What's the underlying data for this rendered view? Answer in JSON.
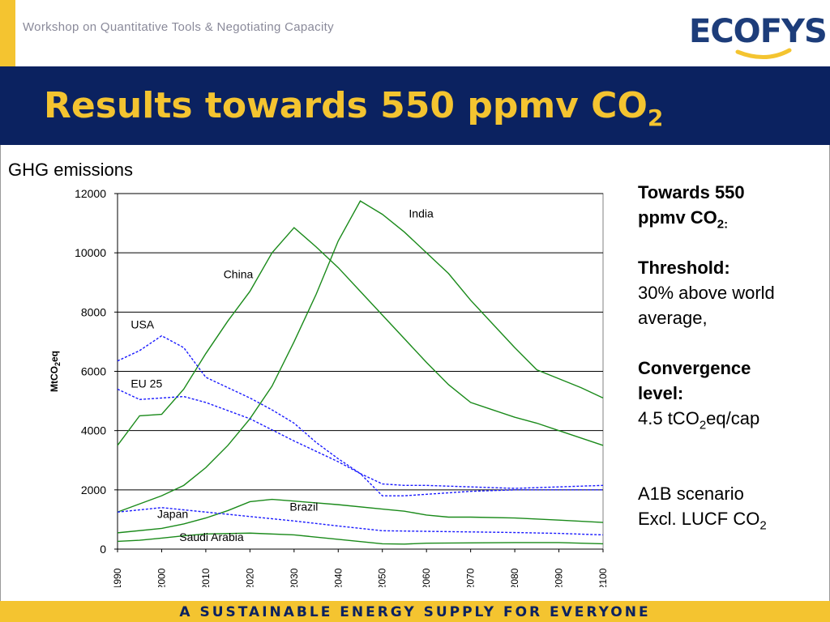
{
  "header": {
    "workshop": "Workshop on Quantitative Tools & Negotiating Capacity",
    "logo_eco": "ECO",
    "logo_fys": "FYS",
    "title_main": "Results towards 550 ppmv CO",
    "title_sub": "2"
  },
  "chart_heading": "GHG emissions",
  "sidebar": {
    "towards_line1": "Towards 550",
    "towards_line2": "ppmv CO",
    "towards_sub": "2:",
    "threshold_label": "Threshold:",
    "threshold_value1": "30% above world",
    "threshold_value2": "average,",
    "convergence_label1": "Convergence",
    "convergence_label2": "level:",
    "convergence_value_a": "4.5 tCO",
    "convergence_value_sub": "2",
    "convergence_value_b": "eq/cap",
    "scenario": "A1B scenario",
    "excl_a": "Excl. LUCF CO",
    "excl_sub": "2"
  },
  "footer": {
    "tagline": "A SUSTAINABLE ENERGY SUPPLY FOR EVERYONE"
  },
  "colors": {
    "navy": "#0b2260",
    "gold": "#f4c430",
    "green_series": "#1a8a1a",
    "blue_series": "#1a1aff"
  },
  "chart_data": {
    "type": "line",
    "ylabel_main": "MtCO",
    "ylabel_sub": "2",
    "ylabel_tail": "eq",
    "xlim": [
      1990,
      2100
    ],
    "ylim": [
      0,
      12000
    ],
    "yticks": [
      0,
      2000,
      4000,
      6000,
      8000,
      10000,
      12000
    ],
    "xticks": [
      1990,
      2000,
      2010,
      2020,
      2030,
      2040,
      2050,
      2060,
      2070,
      2080,
      2090,
      2100
    ],
    "grid": true,
    "series": [
      {
        "name": "India",
        "style": "solid",
        "color": "#1a8a1a",
        "x": [
          1990,
          2000,
          2005,
          2010,
          2015,
          2020,
          2025,
          2030,
          2035,
          2040,
          2045,
          2050,
          2055,
          2060,
          2065,
          2070,
          2075,
          2080,
          2085,
          2090,
          2095,
          2100
        ],
        "y": [
          1250,
          1800,
          2150,
          2750,
          3500,
          4400,
          5500,
          7000,
          8600,
          10400,
          11750,
          11300,
          10700,
          10000,
          9300,
          8400,
          7600,
          6800,
          6050,
          5750,
          5450,
          5100
        ]
      },
      {
        "name": "China",
        "style": "solid",
        "color": "#1a8a1a",
        "x": [
          1990,
          1995,
          2000,
          2005,
          2010,
          2015,
          2020,
          2025,
          2030,
          2035,
          2040,
          2045,
          2050,
          2055,
          2060,
          2065,
          2070,
          2075,
          2080,
          2085,
          2090,
          2095,
          2100
        ],
        "y": [
          3500,
          4500,
          4550,
          5400,
          6600,
          7700,
          8700,
          10000,
          10850,
          10200,
          9500,
          8700,
          7900,
          7100,
          6300,
          5550,
          4950,
          4700,
          4450,
          4250,
          4000,
          3750,
          3500
        ]
      },
      {
        "name": "Brazil",
        "style": "solid",
        "color": "#1a8a1a",
        "x": [
          1990,
          2000,
          2005,
          2010,
          2015,
          2020,
          2025,
          2030,
          2040,
          2050,
          2055,
          2060,
          2065,
          2070,
          2080,
          2090,
          2100
        ],
        "y": [
          550,
          700,
          850,
          1050,
          1300,
          1600,
          1680,
          1620,
          1500,
          1350,
          1280,
          1150,
          1080,
          1080,
          1050,
          980,
          900
        ]
      },
      {
        "name": "Saudi Arabia",
        "style": "solid",
        "color": "#1a8a1a",
        "x": [
          1990,
          1995,
          2000,
          2005,
          2010,
          2020,
          2030,
          2040,
          2050,
          2055,
          2060,
          2070,
          2080,
          2090,
          2100
        ],
        "y": [
          260,
          300,
          370,
          450,
          510,
          540,
          480,
          330,
          180,
          170,
          200,
          210,
          220,
          220,
          180
        ]
      },
      {
        "name": "USA",
        "style": "dashed",
        "color": "#1a1aff",
        "x": [
          1990,
          1995,
          2000,
          2005,
          2010,
          2015,
          2020,
          2025,
          2030,
          2035,
          2040,
          2045,
          2050,
          2055,
          2060,
          2070,
          2080,
          2090,
          2100
        ],
        "y": [
          6350,
          6700,
          7200,
          6800,
          5800,
          5450,
          5100,
          4700,
          4250,
          3600,
          3050,
          2550,
          2200,
          2150,
          2150,
          2100,
          2050,
          2100,
          2150
        ]
      },
      {
        "name": "EU 25",
        "style": "dashed",
        "color": "#1a1aff",
        "x": [
          1990,
          1995,
          2000,
          2005,
          2010,
          2020,
          2030,
          2040,
          2045,
          2050,
          2055,
          2060,
          2070,
          2080,
          2090,
          2100
        ],
        "y": [
          5400,
          5050,
          5100,
          5150,
          4950,
          4400,
          3650,
          2950,
          2550,
          1800,
          1800,
          1850,
          1950,
          2000,
          2000,
          2000
        ]
      },
      {
        "name": "Japan",
        "style": "dashed",
        "color": "#1a1aff",
        "x": [
          1990,
          2000,
          2010,
          2020,
          2030,
          2040,
          2050,
          2060,
          2070,
          2080,
          2090,
          2100
        ],
        "y": [
          1250,
          1400,
          1250,
          1100,
          950,
          780,
          620,
          600,
          580,
          560,
          530,
          480
        ]
      }
    ]
  }
}
